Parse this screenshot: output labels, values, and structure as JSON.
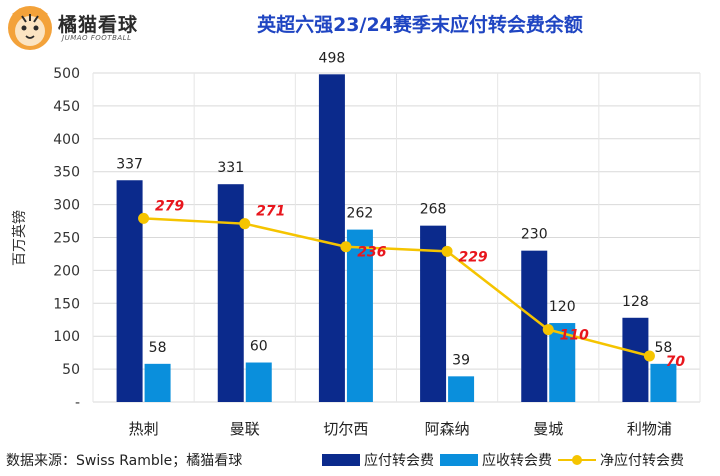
{
  "brand": {
    "name": "橘猫看球",
    "sub": "JUMAO FOOTBALL"
  },
  "colors": {
    "payable": "#0b2a8c",
    "receivable": "#0a8fdc",
    "net": "#f5c400",
    "net_label": "#e8161d",
    "title": "#1f45c2"
  },
  "source": "数据来源：Swiss Ramble；橘猫看球",
  "chart_data": {
    "type": "bar",
    "title": "英超六强23/24赛季末应付转会费余额",
    "ylabel": "百万英镑",
    "xlabel": "",
    "ylim": [
      0,
      500
    ],
    "yticks": [
      "-",
      "50",
      "100",
      "150",
      "200",
      "250",
      "300",
      "350",
      "400",
      "450",
      "500"
    ],
    "grid": true,
    "legend_position": "bottom",
    "categories": [
      "热刺",
      "曼联",
      "切尔西",
      "阿森纳",
      "曼城",
      "利物浦"
    ],
    "series": [
      {
        "name": "应付转会费",
        "kind": "bar",
        "values": [
          337,
          331,
          498,
          268,
          230,
          128
        ]
      },
      {
        "name": "应收转会费",
        "kind": "bar",
        "values": [
          58,
          60,
          262,
          39,
          120,
          58
        ]
      },
      {
        "name": "净应付转会费",
        "kind": "line",
        "values": [
          279,
          271,
          236,
          229,
          110,
          70
        ]
      }
    ]
  }
}
